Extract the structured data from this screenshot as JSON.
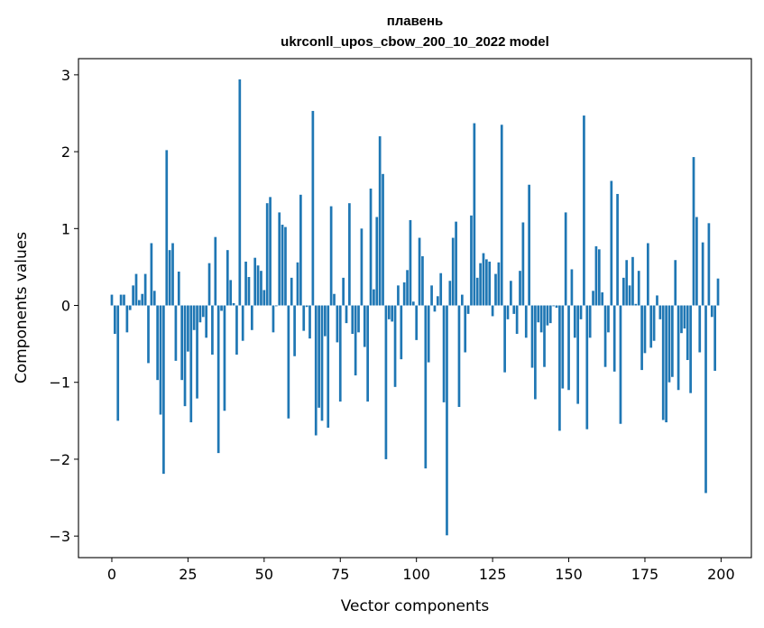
{
  "chart_data": {
    "type": "bar",
    "title_line1": "плавень",
    "title_line2": "ukrconll_upos_cbow_200_10_2022 model",
    "xlabel": "Vector components",
    "ylabel": "Components values",
    "xlim": [
      -10.95,
      209.95
    ],
    "ylim": [
      -3.28,
      3.21
    ],
    "xticks": [
      0,
      25,
      50,
      75,
      100,
      125,
      150,
      175,
      200
    ],
    "yticks": [
      -3,
      -2,
      -1,
      0,
      1,
      2,
      3
    ],
    "ytick_labels": [
      "−3",
      "−2",
      "−1",
      "0",
      "1",
      "2",
      "3"
    ],
    "bar_color": "#1f77b4",
    "bar_width": 0.8,
    "grid": false,
    "values": [
      0.14,
      -0.37,
      -1.5,
      0.14,
      0.14,
      -0.35,
      -0.06,
      0.26,
      0.41,
      0.07,
      0.15,
      0.41,
      -0.75,
      0.81,
      0.19,
      -0.97,
      -1.42,
      -2.19,
      2.02,
      0.72,
      0.81,
      -0.72,
      0.44,
      -0.97,
      -1.31,
      -0.6,
      -1.52,
      -0.32,
      -1.21,
      -0.22,
      -0.15,
      -0.42,
      0.55,
      -0.64,
      0.89,
      -1.92,
      -0.07,
      -1.37,
      0.72,
      0.33,
      0.03,
      -0.64,
      2.94,
      -0.46,
      0.57,
      0.37,
      -0.32,
      0.62,
      0.52,
      0.45,
      0.2,
      1.33,
      1.41,
      -0.35,
      -0.01,
      1.21,
      1.05,
      1.02,
      -1.47,
      0.36,
      -0.66,
      0.56,
      1.44,
      -0.33,
      -0.02,
      -0.43,
      2.53,
      -1.69,
      -1.33,
      -1.5,
      -0.4,
      -1.59,
      1.29,
      0.15,
      -0.48,
      -1.25,
      0.36,
      -0.23,
      1.33,
      -0.37,
      -0.91,
      -0.35,
      1.0,
      -0.54,
      -1.25,
      1.52,
      0.21,
      1.15,
      2.2,
      1.71,
      -2.0,
      -0.18,
      -0.21,
      -1.06,
      0.26,
      -0.7,
      0.3,
      0.46,
      1.11,
      0.05,
      -0.45,
      0.88,
      0.64,
      -2.12,
      -0.74,
      0.26,
      -0.08,
      0.12,
      0.42,
      -1.26,
      -2.99,
      0.32,
      0.88,
      1.09,
      -1.32,
      0.14,
      -0.61,
      -0.11,
      1.17,
      2.37,
      0.36,
      0.55,
      0.68,
      0.6,
      0.57,
      -0.14,
      0.41,
      0.56,
      2.35,
      -0.87,
      -0.18,
      0.32,
      -0.11,
      -0.37,
      0.45,
      1.08,
      -0.42,
      1.57,
      -0.81,
      -1.22,
      -0.22,
      -0.35,
      -0.8,
      -0.26,
      -0.23,
      -0.01,
      -0.03,
      -1.63,
      -1.08,
      1.21,
      -1.1,
      0.47,
      -0.42,
      -1.28,
      -0.18,
      2.47,
      -1.61,
      -0.42,
      0.19,
      0.77,
      0.73,
      0.17,
      -0.8,
      -0.35,
      1.62,
      -0.86,
      1.45,
      -1.54,
      0.36,
      0.59,
      0.26,
      0.63,
      0.02,
      0.45,
      -0.84,
      -0.62,
      0.81,
      -0.55,
      -0.46,
      0.13,
      -0.18,
      -1.49,
      -1.52,
      -1.0,
      -0.93,
      0.59,
      -1.1,
      -0.36,
      -0.3,
      -0.71,
      -1.14,
      1.93,
      1.15,
      -0.61,
      0.82,
      -2.44,
      1.07,
      -0.15,
      -0.85,
      0.35
    ]
  }
}
